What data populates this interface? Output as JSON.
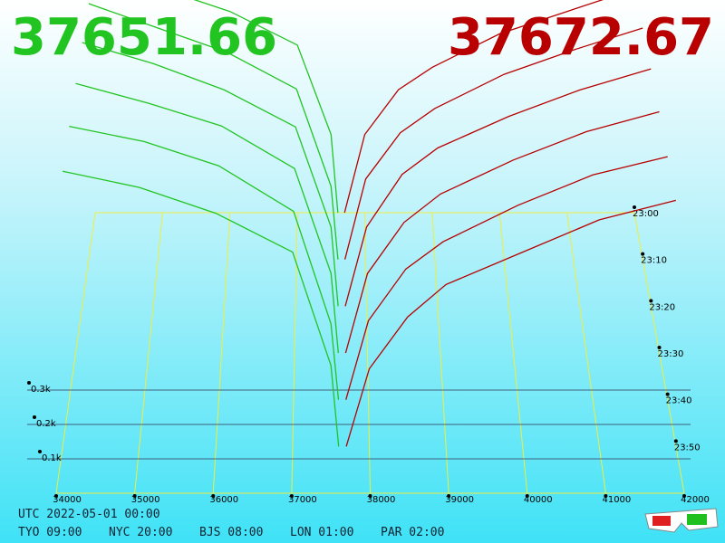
{
  "chart_data": {
    "type": "depth3d",
    "best_bid": "37651.66",
    "best_ask": "37672.67",
    "bid_color": "#22c422",
    "ask_color": "#b80000",
    "xlim": [
      34000,
      42000
    ],
    "xticks": [
      34000,
      35000,
      36000,
      37000,
      38000,
      39000,
      40000,
      41000,
      42000
    ],
    "zticks": [
      {
        "value": 0.1,
        "label": "0.1k"
      },
      {
        "value": 0.2,
        "label": "0.2k"
      },
      {
        "value": 0.3,
        "label": "0.3k"
      }
    ],
    "bid_prices": [
      34000,
      35000,
      36000,
      37000,
      37500,
      37600
    ],
    "ask_prices": [
      37700,
      38000,
      38500,
      39000,
      40000,
      41000,
      42000
    ],
    "snapshots": [
      {
        "time": "23:00",
        "bids": [
          1.1,
          1.0,
          0.9,
          0.75,
          0.35,
          0
        ],
        "asks": [
          0,
          0.35,
          0.55,
          0.65,
          0.8,
          0.9,
          1.0
        ]
      },
      {
        "time": "23:10",
        "bids": [
          1.05,
          0.95,
          0.85,
          0.7,
          0.3,
          0
        ],
        "asks": [
          0,
          0.33,
          0.52,
          0.62,
          0.76,
          0.86,
          0.95
        ]
      },
      {
        "time": "23:20",
        "bids": [
          1.0,
          0.92,
          0.82,
          0.68,
          0.3,
          0
        ],
        "asks": [
          0,
          0.3,
          0.5,
          0.6,
          0.72,
          0.82,
          0.9
        ]
      },
      {
        "time": "23:30",
        "bids": [
          0.95,
          0.88,
          0.8,
          0.65,
          0.28,
          0
        ],
        "asks": [
          0,
          0.28,
          0.46,
          0.56,
          0.68,
          0.78,
          0.85
        ]
      },
      {
        "time": "23:40",
        "bids": [
          0.9,
          0.85,
          0.77,
          0.62,
          0.25,
          0
        ],
        "asks": [
          0,
          0.26,
          0.43,
          0.52,
          0.64,
          0.74,
          0.8
        ]
      },
      {
        "time": "23:50",
        "bids": [
          0.85,
          0.8,
          0.72,
          0.6,
          0.25,
          0
        ],
        "asks": [
          0,
          0.24,
          0.4,
          0.5,
          0.6,
          0.7,
          0.76
        ]
      }
    ],
    "clock_utc": "UTC 2022-05-01 00:00",
    "clocks": [
      "TYO 09:00",
      "NYC 20:00",
      "BJS 08:00",
      "LON 01:00",
      "PAR 02:00"
    ]
  }
}
